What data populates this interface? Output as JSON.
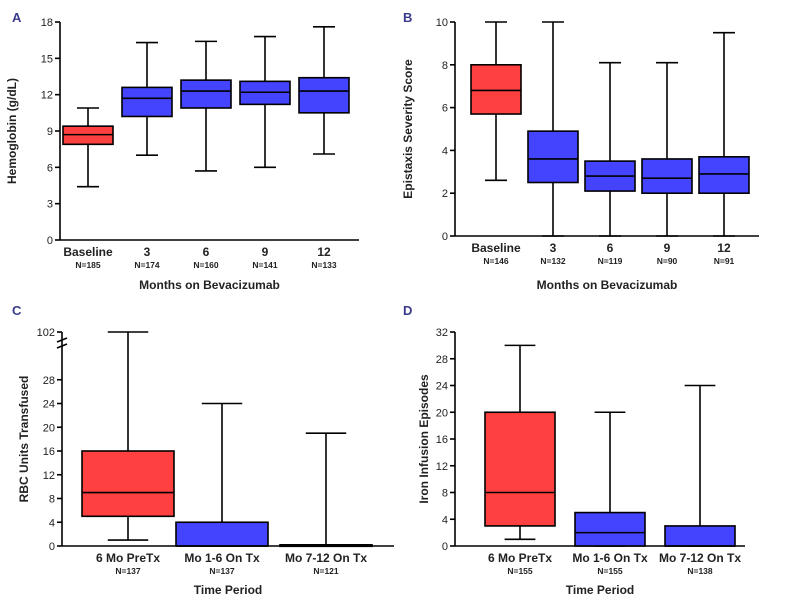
{
  "colors": {
    "baseline_fill": "#ff4040",
    "treatment_fill": "#4444ff",
    "axis": "#000000"
  },
  "chart_data": [
    {
      "panel": "A",
      "type": "boxplot",
      "xlabel": "Months on Bevacizumab",
      "ylabel": "Hemoglobin (g/dL)",
      "ylim": [
        0,
        18
      ],
      "yticks": [
        0,
        3,
        6,
        9,
        12,
        15,
        18
      ],
      "categories": [
        "Baseline",
        "3",
        "6",
        "9",
        "12"
      ],
      "n_labels": [
        "N=185",
        "N=174",
        "N=160",
        "N=141",
        "N=133"
      ],
      "boxes": [
        {
          "min": 4.4,
          "q1": 7.9,
          "median": 8.7,
          "q3": 9.4,
          "max": 10.9,
          "group": "baseline"
        },
        {
          "min": 7.0,
          "q1": 10.2,
          "median": 11.7,
          "q3": 12.6,
          "max": 16.3,
          "group": "treatment"
        },
        {
          "min": 5.7,
          "q1": 10.9,
          "median": 12.3,
          "q3": 13.2,
          "max": 16.4,
          "group": "treatment"
        },
        {
          "min": 6.0,
          "q1": 11.2,
          "median": 12.2,
          "q3": 13.1,
          "max": 16.8,
          "group": "treatment"
        },
        {
          "min": 7.1,
          "q1": 10.5,
          "median": 12.3,
          "q3": 13.4,
          "max": 17.6,
          "group": "treatment"
        }
      ]
    },
    {
      "panel": "B",
      "type": "boxplot",
      "xlabel": "Months on Bevacizumab",
      "ylabel": "Epistaxis Severity Score",
      "ylim": [
        0,
        10
      ],
      "yticks": [
        0,
        2,
        4,
        6,
        8,
        10
      ],
      "categories": [
        "Baseline",
        "3",
        "6",
        "9",
        "12"
      ],
      "n_labels": [
        "N=146",
        "N=132",
        "N=119",
        "N=90",
        "N=91"
      ],
      "boxes": [
        {
          "min": 2.6,
          "q1": 5.7,
          "median": 6.8,
          "q3": 8.0,
          "max": 10.0,
          "group": "baseline"
        },
        {
          "min": 0.0,
          "q1": 2.5,
          "median": 3.6,
          "q3": 4.9,
          "max": 10.0,
          "group": "treatment"
        },
        {
          "min": 0.0,
          "q1": 2.1,
          "median": 2.8,
          "q3": 3.5,
          "max": 8.1,
          "group": "treatment"
        },
        {
          "min": 0.0,
          "q1": 2.0,
          "median": 2.7,
          "q3": 3.6,
          "max": 8.1,
          "group": "treatment"
        },
        {
          "min": 0.0,
          "q1": 2.0,
          "median": 2.9,
          "q3": 3.7,
          "max": 9.5,
          "group": "treatment"
        }
      ]
    },
    {
      "panel": "C",
      "type": "boxplot",
      "xlabel": "Time Period",
      "ylabel": "RBC Units Transfused",
      "ylim": [
        0,
        32
      ],
      "yticks": [
        0,
        4,
        8,
        12,
        16,
        20,
        24,
        28
      ],
      "axis_break": {
        "label": "102",
        "value": 102
      },
      "categories": [
        "6 Mo PreTx",
        "Mo 1-6 On Tx",
        "Mo 7-12 On Tx"
      ],
      "n_labels": [
        "N=137",
        "N=137",
        "N=121"
      ],
      "boxes": [
        {
          "min": 1.0,
          "q1": 5.0,
          "median": 9.0,
          "q3": 16.0,
          "max": 102,
          "group": "baseline"
        },
        {
          "min": 0.0,
          "q1": 0.0,
          "median": 0.0,
          "q3": 4.0,
          "max": 24.0,
          "group": "treatment"
        },
        {
          "min": 0.0,
          "q1": 0.0,
          "median": 0.0,
          "q3": 0.2,
          "max": 19.0,
          "group": "treatment"
        }
      ]
    },
    {
      "panel": "D",
      "type": "boxplot",
      "xlabel": "Time Period",
      "ylabel": "Iron Infusion Episodes",
      "ylim": [
        0,
        32
      ],
      "yticks": [
        0,
        4,
        8,
        12,
        16,
        20,
        24,
        28,
        32
      ],
      "categories": [
        "6 Mo PreTx",
        "Mo 1-6 On Tx",
        "Mo 7-12 On Tx"
      ],
      "n_labels": [
        "N=155",
        "N=155",
        "N=138"
      ],
      "boxes": [
        {
          "min": 1.0,
          "q1": 3.0,
          "median": 8.0,
          "q3": 20.0,
          "max": 30.0,
          "group": "baseline"
        },
        {
          "min": 0.0,
          "q1": 0.0,
          "median": 2.0,
          "q3": 5.0,
          "max": 20.0,
          "group": "treatment"
        },
        {
          "min": 0.0,
          "q1": 0.0,
          "median": 0.0,
          "q3": 3.0,
          "max": 24.0,
          "group": "treatment"
        }
      ]
    }
  ]
}
